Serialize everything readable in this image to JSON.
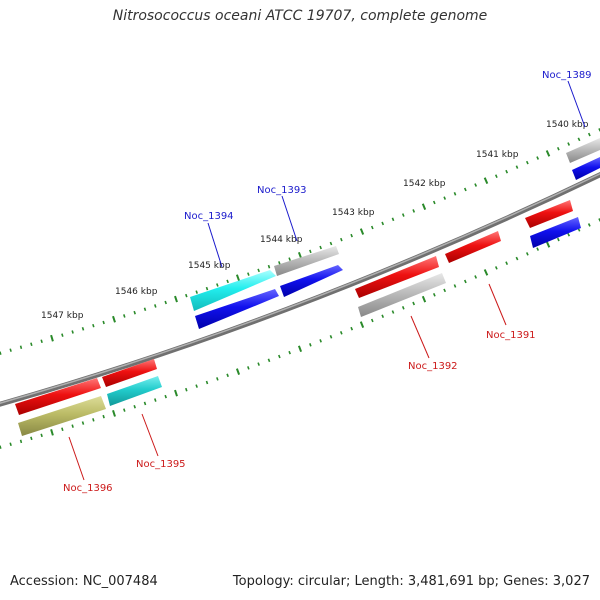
{
  "title": "Nitrosococcus oceani ATCC 19707, complete genome",
  "footer": {
    "accession": "Accession: NC_007484",
    "summary": "Topology: circular; Length: 3,481,691 bp; Genes: 3,027"
  },
  "colors": {
    "backbone": "#7a7a7a",
    "tick": "#2a8a2a",
    "label_plus": "#1a1acc",
    "label_minus": "#cc1a1a",
    "red": "#ee1111",
    "blue": "#1111ee",
    "cyan": "#22eeee",
    "teal": "#22cccc",
    "gray": "#bbbbbb",
    "olive": "#bbbb66"
  },
  "kbp_labels": [
    "1540 kbp",
    "1541 kbp",
    "1542 kbp",
    "1543 kbp",
    "1544 kbp",
    "1545 kbp",
    "1546 kbp",
    "1547 kbp"
  ],
  "genes": [
    {
      "id": "Noc_1389",
      "strand": "plus",
      "color": "gray"
    },
    {
      "id": "Noc_1389b",
      "strand": "plus",
      "color": "blue"
    },
    {
      "id": "Noc_1390",
      "strand": "minus",
      "color": "red"
    },
    {
      "id": "Noc_1390b",
      "strand": "minus",
      "color": "blue"
    },
    {
      "id": "Noc_1391",
      "strand": "minus",
      "color": "red"
    },
    {
      "id": "Noc_1392",
      "strand": "minus",
      "color": "red"
    },
    {
      "id": "Noc_1392b",
      "strand": "minus",
      "color": "gray"
    },
    {
      "id": "Noc_1393",
      "strand": "plus",
      "color": "gray"
    },
    {
      "id": "Noc_1393b",
      "strand": "plus",
      "color": "blue"
    },
    {
      "id": "Noc_1394",
      "strand": "plus",
      "color": "cyan"
    },
    {
      "id": "Noc_1394b",
      "strand": "plus",
      "color": "blue"
    },
    {
      "id": "Noc_1395",
      "strand": "minus",
      "color": "red"
    },
    {
      "id": "Noc_1395b",
      "strand": "minus",
      "color": "teal"
    },
    {
      "id": "Noc_1396",
      "strand": "minus",
      "color": "red"
    },
    {
      "id": "Noc_1396b",
      "strand": "minus",
      "color": "olive"
    }
  ],
  "gene_labels": {
    "noc_1389": "Noc_1389",
    "noc_1391": "Noc_1391",
    "noc_1392": "Noc_1392",
    "noc_1393": "Noc_1393",
    "noc_1394": "Noc_1394",
    "noc_1395": "Noc_1395",
    "noc_1396": "Noc_1396"
  }
}
